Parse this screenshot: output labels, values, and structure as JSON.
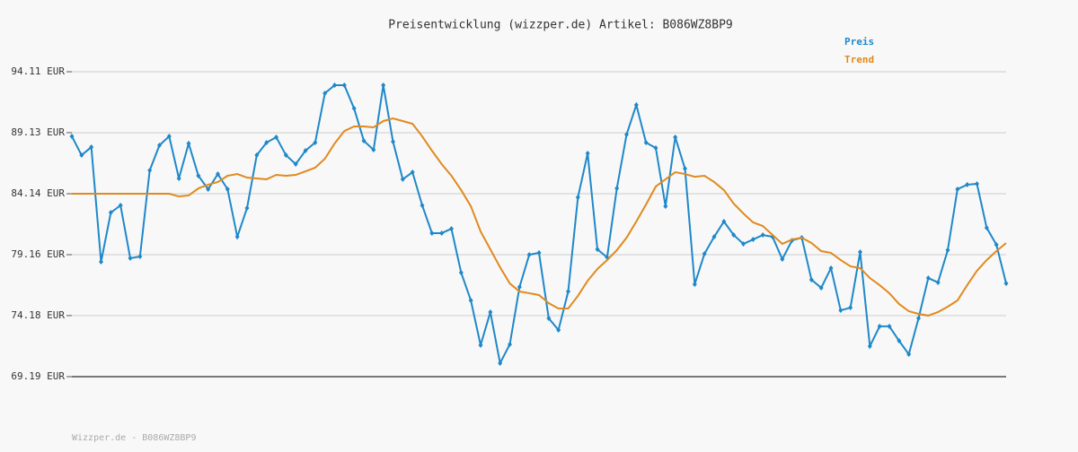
{
  "chart_data": {
    "type": "line",
    "title": "Preisentwicklung (wizzper.de) Artikel: B086WZ8BP9",
    "footer": "Wizzper.de - B086WZ8BP9",
    "categories": [
      null,
      null,
      null,
      null,
      null,
      null,
      null,
      null,
      null,
      null,
      null,
      null,
      null,
      null,
      null,
      null,
      null,
      null,
      null,
      null,
      null,
      null,
      null,
      null,
      null,
      null,
      null,
      null,
      null,
      null,
      null,
      null,
      null,
      null,
      null,
      null,
      null,
      null,
      null,
      null,
      null,
      null,
      null,
      null,
      null,
      null,
      null,
      null,
      null,
      null,
      null,
      null,
      null,
      null,
      null,
      null,
      null,
      null,
      null,
      null,
      null,
      null,
      null,
      null,
      null,
      null,
      null,
      null,
      null,
      null,
      null,
      null,
      null,
      null,
      null,
      null,
      null,
      null,
      null,
      null,
      null,
      null,
      null,
      null,
      null,
      null,
      null,
      null,
      null,
      null,
      null,
      null,
      null,
      null,
      null,
      null,
      null
    ],
    "series": [
      {
        "name": "Preis",
        "color": "#1f88c9",
        "markers": true,
        "values": [
          88.83,
          87.29,
          87.95,
          78.57,
          82.6,
          83.19,
          78.87,
          79.01,
          86.05,
          88.1,
          88.83,
          85.39,
          88.25,
          85.61,
          84.51,
          85.75,
          84.51,
          80.62,
          82.97,
          87.29,
          88.32,
          88.76,
          87.29,
          86.56,
          87.66,
          88.32,
          92.35,
          93.01,
          93.01,
          91.11,
          88.47,
          87.73,
          93.01,
          88.39,
          85.32,
          85.9,
          83.19,
          80.92,
          80.92,
          81.28,
          77.69,
          75.42,
          71.76,
          74.47,
          70.29,
          71.83,
          76.52,
          79.16,
          79.31,
          73.96,
          73.0,
          76.15,
          83.85,
          87.44,
          79.6,
          78.94,
          84.58,
          88.98,
          91.4,
          88.32,
          87.88,
          83.12,
          88.76,
          86.19,
          76.74,
          79.23,
          80.62,
          81.87,
          80.77,
          80.04,
          80.4,
          80.77,
          80.62,
          78.79,
          80.33,
          80.55,
          77.11,
          76.45,
          78.06,
          74.61,
          74.83,
          79.38,
          71.68,
          73.3,
          73.3,
          72.12,
          71.02,
          73.96,
          77.25,
          76.89,
          79.53,
          84.51,
          84.88,
          84.95,
          81.36,
          79.97,
          76.81
        ]
      },
      {
        "name": "Trend",
        "color": "#e08a1e",
        "markers": false,
        "values": [
          84.14,
          84.14,
          84.14,
          84.14,
          84.14,
          84.14,
          84.14,
          84.14,
          84.14,
          84.14,
          84.14,
          83.92,
          84.0,
          84.58,
          84.88,
          85.1,
          85.61,
          85.75,
          85.46,
          85.39,
          85.32,
          85.68,
          85.61,
          85.68,
          85.97,
          86.27,
          87.0,
          88.25,
          89.27,
          89.64,
          89.64,
          89.57,
          90.08,
          90.3,
          90.08,
          89.86,
          88.83,
          87.66,
          86.56,
          85.61,
          84.44,
          83.12,
          81.06,
          79.6,
          78.13,
          76.81,
          76.15,
          76.01,
          75.86,
          75.2,
          74.76,
          74.76,
          75.79,
          77.03,
          77.99,
          78.72,
          79.53,
          80.55,
          81.87,
          83.26,
          84.73,
          85.32,
          85.9,
          85.75,
          85.53,
          85.61,
          85.1,
          84.44,
          83.34,
          82.53,
          81.8,
          81.5,
          80.77,
          80.04,
          80.4,
          80.55,
          80.11,
          79.45,
          79.31,
          78.72,
          78.21,
          78.06,
          77.25,
          76.67,
          76.01,
          75.13,
          74.54,
          74.32,
          74.18,
          74.47,
          74.91,
          75.42,
          76.67,
          77.84,
          78.72,
          79.45,
          80.11
        ]
      }
    ],
    "ylim": [
      69.19,
      94.11
    ],
    "yticks": [
      {
        "value": 69.19,
        "label": "69.19 EUR"
      },
      {
        "value": 74.18,
        "label": "74.18 EUR"
      },
      {
        "value": 79.16,
        "label": "79.16 EUR"
      },
      {
        "value": 84.14,
        "label": "84.14 EUR"
      },
      {
        "value": 89.13,
        "label": "89.13 EUR"
      },
      {
        "value": 94.11,
        "label": "94.11 EUR"
      }
    ],
    "grid": true
  }
}
